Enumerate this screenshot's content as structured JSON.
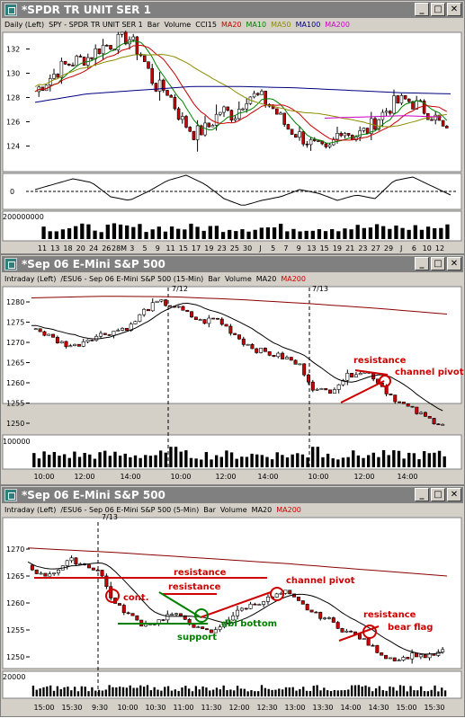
{
  "windows": [
    {
      "title": "*SPDR TR UNIT SER 1",
      "legend": [
        {
          "text": "Daily  (Left)",
          "color": "#000000"
        },
        {
          "text": "SPY - SPDR TR UNIT SER 1",
          "color": "#000000"
        },
        {
          "text": "Bar",
          "color": "#000000"
        },
        {
          "text": "Volume",
          "color": "#000000"
        },
        {
          "text": "CCI15",
          "color": "#000000"
        },
        {
          "text": "MA20",
          "color": "#cc0000"
        },
        {
          "text": "MA10",
          "color": "#008000"
        },
        {
          "text": "MA50",
          "color": "#8c8c00"
        },
        {
          "text": "MA100",
          "color": "#000080"
        },
        {
          "text": "MA200",
          "color": "#cc00cc"
        }
      ],
      "y_ticks": [
        "132",
        "130",
        "128",
        "126",
        "124"
      ],
      "cci_tick": "0",
      "volume_tick": "200000000",
      "x_ticks": [
        "11",
        "13",
        "18",
        "20",
        "24",
        "26",
        "28M",
        "3",
        "5",
        "9",
        "11",
        "15",
        "17",
        "19",
        "23",
        "25",
        "30",
        "J",
        "5",
        "7",
        "9",
        "13",
        "15",
        "19",
        "21",
        "23",
        "27",
        "29",
        "J",
        "6",
        "10",
        "12"
      ]
    },
    {
      "title": "*Sep 06  E-Mini S&P 500",
      "legend": [
        {
          "text": "Intraday  (Left)",
          "color": "#000000"
        },
        {
          "text": "/ESU6 - Sep 06  E-Mini S&P 500  (15-Min)",
          "color": "#000000"
        },
        {
          "text": "Bar",
          "color": "#000000"
        },
        {
          "text": "Volume",
          "color": "#000000"
        },
        {
          "text": "MA20",
          "color": "#000000"
        },
        {
          "text": "MA200",
          "color": "#cc0000"
        }
      ],
      "y_ticks": [
        "1280",
        "1275",
        "1270",
        "1265",
        "1260",
        "1255",
        "1250"
      ],
      "volume_tick": "100000",
      "x_ticks": [
        "10:00",
        "12:00",
        "14:00",
        "10:00",
        "12:00",
        "14:00",
        "10:00",
        "12:00",
        "14:00"
      ],
      "date_marks": [
        "7/12",
        "7/13"
      ],
      "annotations": {
        "resistance": "resistance",
        "channel_pivot": "channel pivot"
      }
    },
    {
      "title": "*Sep 06  E-Mini S&P 500",
      "legend": [
        {
          "text": "Intraday  (Left)",
          "color": "#000000"
        },
        {
          "text": "/ESU6 - Sep 06  E-Mini S&P 500  (5-Min)",
          "color": "#000000"
        },
        {
          "text": "Bar",
          "color": "#000000"
        },
        {
          "text": "Volume",
          "color": "#000000"
        },
        {
          "text": "MA20",
          "color": "#000000"
        },
        {
          "text": "MA200",
          "color": "#cc0000"
        }
      ],
      "y_ticks": [
        "1270",
        "1265",
        "1260",
        "1255",
        "1250"
      ],
      "volume_tick": "20000",
      "x_ticks": [
        "15:00",
        "15:30",
        "9:30",
        "10:00",
        "10:30",
        "11:00",
        "11:30",
        "12:00",
        "12:30",
        "13:00",
        "13:30",
        "14:00",
        "14:30",
        "15:00",
        "15:30"
      ],
      "date_marks": [
        "7/13"
      ],
      "annotations": {
        "resistance_top": "resistance",
        "resistance_mid": "resistance",
        "cont": "cont.",
        "channel_pivot": "channel pivot",
        "dbl_bottom": "dbl bottom",
        "support": "support",
        "resistance_right": "resistance",
        "bear_flag": "bear flag"
      }
    }
  ],
  "window_buttons": {
    "minimize": "_",
    "maximize": "□",
    "close": "✕"
  },
  "colors": {
    "up_candle": "#ffffff",
    "down_candle": "#cc0000",
    "annotation": "#cc0000",
    "support_annotation": "#008000"
  }
}
